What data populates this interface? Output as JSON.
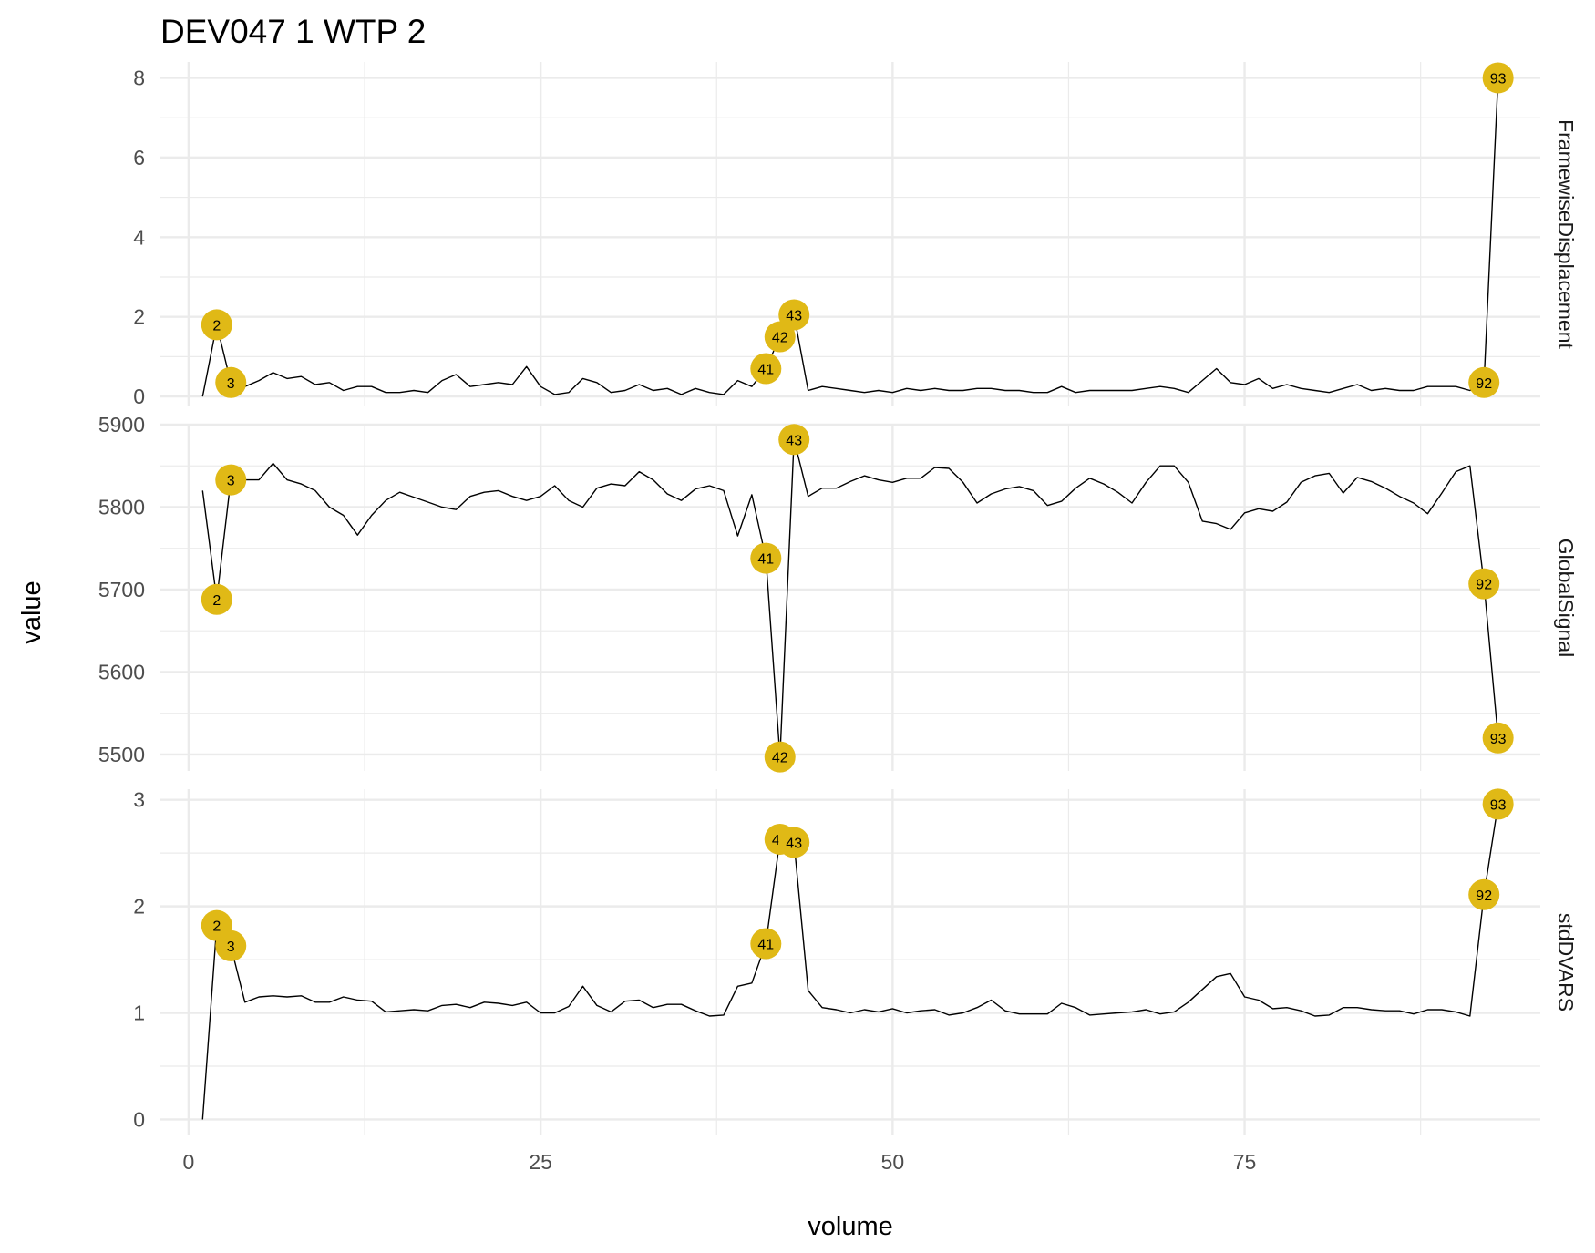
{
  "chart_data": {
    "type": "line",
    "title": "DEV047  1  WTP  2",
    "xlabel": "volume",
    "ylabel": "value",
    "xlim": [
      -2,
      96
    ],
    "x_ticks": [
      0,
      25,
      50,
      75
    ],
    "grid": true,
    "highlight_color": "#E0B916",
    "panels": [
      {
        "name": "FramewiseDisplacement",
        "ylim": [
          -0.25,
          8.4
        ],
        "y_ticks": [
          0,
          2,
          4,
          6,
          8
        ],
        "values": [
          0,
          1.8,
          0.35,
          0.25,
          0.4,
          0.6,
          0.45,
          0.5,
          0.3,
          0.35,
          0.15,
          0.25,
          0.25,
          0.1,
          0.1,
          0.15,
          0.1,
          0.4,
          0.55,
          0.25,
          0.3,
          0.35,
          0.3,
          0.75,
          0.25,
          0.05,
          0.1,
          0.45,
          0.35,
          0.1,
          0.15,
          0.3,
          0.15,
          0.2,
          0.05,
          0.2,
          0.1,
          0.05,
          0.4,
          0.25,
          0.7,
          1.5,
          2.05,
          0.15,
          0.25,
          0.2,
          0.15,
          0.1,
          0.15,
          0.1,
          0.2,
          0.15,
          0.2,
          0.15,
          0.15,
          0.2,
          0.2,
          0.15,
          0.15,
          0.1,
          0.1,
          0.25,
          0.1,
          0.15,
          0.15,
          0.15,
          0.15,
          0.2,
          0.25,
          0.2,
          0.1,
          0.4,
          0.7,
          0.35,
          0.3,
          0.45,
          0.2,
          0.3,
          0.2,
          0.15,
          0.1,
          0.2,
          0.3,
          0.15,
          0.2,
          0.15,
          0.15,
          0.25,
          0.25,
          0.25,
          0.15,
          0.35,
          8.0
        ],
        "highlighted": [
          {
            "volume": 2,
            "label": "2"
          },
          {
            "volume": 3,
            "label": "3"
          },
          {
            "volume": 41,
            "label": "41"
          },
          {
            "volume": 42,
            "label": "42"
          },
          {
            "volume": 43,
            "label": "43"
          },
          {
            "volume": 92,
            "label": "92"
          },
          {
            "volume": 93,
            "label": "93"
          }
        ]
      },
      {
        "name": "GlobalSignal",
        "ylim": [
          5480,
          5900
        ],
        "y_ticks": [
          5500,
          5600,
          5700,
          5800,
          5900
        ],
        "values": [
          5820,
          5688,
          5833,
          5833,
          5833,
          5853,
          5833,
          5828,
          5820,
          5800,
          5790,
          5766,
          5790,
          5808,
          5818,
          5812,
          5806,
          5800,
          5797,
          5813,
          5818,
          5820,
          5813,
          5808,
          5813,
          5826,
          5808,
          5800,
          5823,
          5828,
          5826,
          5843,
          5833,
          5816,
          5808,
          5822,
          5826,
          5820,
          5765,
          5815,
          5738,
          5497,
          5882,
          5813,
          5823,
          5823,
          5831,
          5838,
          5833,
          5830,
          5835,
          5835,
          5848,
          5847,
          5830,
          5805,
          5816,
          5822,
          5825,
          5820,
          5802,
          5807,
          5823,
          5835,
          5828,
          5818,
          5805,
          5830,
          5850,
          5850,
          5830,
          5783,
          5780,
          5773,
          5793,
          5798,
          5795,
          5806,
          5830,
          5838,
          5841,
          5817,
          5836,
          5831,
          5823,
          5813,
          5805,
          5792,
          5817,
          5843,
          5850,
          5707,
          5520
        ],
        "highlighted": [
          {
            "volume": 2,
            "label": "2"
          },
          {
            "volume": 3,
            "label": "3"
          },
          {
            "volume": 41,
            "label": "41"
          },
          {
            "volume": 42,
            "label": "42"
          },
          {
            "volume": 43,
            "label": "43"
          },
          {
            "volume": 92,
            "label": "92"
          },
          {
            "volume": 93,
            "label": "93"
          }
        ]
      },
      {
        "name": "stdDVARS",
        "ylim": [
          -0.15,
          3.1
        ],
        "y_ticks": [
          0,
          1,
          2,
          3
        ],
        "values": [
          0,
          1.82,
          1.63,
          1.1,
          1.15,
          1.16,
          1.15,
          1.16,
          1.1,
          1.1,
          1.15,
          1.12,
          1.11,
          1.01,
          1.02,
          1.03,
          1.02,
          1.07,
          1.08,
          1.05,
          1.1,
          1.09,
          1.07,
          1.1,
          1.0,
          1.0,
          1.06,
          1.25,
          1.07,
          1.01,
          1.11,
          1.12,
          1.05,
          1.08,
          1.08,
          1.02,
          0.97,
          0.98,
          1.25,
          1.28,
          1.65,
          2.63,
          2.6,
          1.21,
          1.05,
          1.03,
          1.0,
          1.03,
          1.01,
          1.04,
          1.0,
          1.02,
          1.03,
          0.98,
          1.0,
          1.05,
          1.12,
          1.02,
          0.99,
          0.99,
          0.99,
          1.09,
          1.05,
          0.98,
          0.99,
          1.0,
          1.01,
          1.03,
          0.99,
          1.01,
          1.1,
          1.22,
          1.34,
          1.37,
          1.15,
          1.12,
          1.04,
          1.05,
          1.02,
          0.97,
          0.98,
          1.05,
          1.05,
          1.03,
          1.02,
          1.02,
          0.99,
          1.03,
          1.03,
          1.01,
          0.97,
          2.11,
          2.96
        ],
        "highlighted": [
          {
            "volume": 2,
            "label": "2"
          },
          {
            "volume": 3,
            "label": "3"
          },
          {
            "volume": 41,
            "label": "41"
          },
          {
            "volume": 42,
            "label": "42"
          },
          {
            "volume": 43,
            "label": "43"
          },
          {
            "volume": 92,
            "label": "92"
          },
          {
            "volume": 93,
            "label": "93"
          }
        ]
      }
    ]
  }
}
